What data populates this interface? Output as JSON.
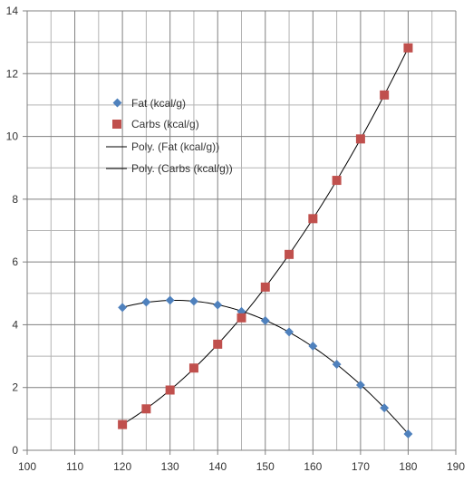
{
  "chart_data": {
    "type": "scatter",
    "title": "",
    "xlabel": "",
    "ylabel": "",
    "xlim": [
      100,
      190
    ],
    "ylim": [
      0,
      14
    ],
    "x_ticks": [
      100,
      110,
      120,
      130,
      140,
      150,
      160,
      170,
      180,
      190
    ],
    "y_ticks": [
      0,
      2,
      4,
      6,
      8,
      10,
      12,
      14
    ],
    "x_minor_step": 5,
    "y_minor_step": 1,
    "grid": true,
    "legend_position": "upper-left inside",
    "series": [
      {
        "name": "Fat (kcal/g)",
        "marker": "diamond",
        "color": "#4f81bd",
        "x": [
          120,
          125,
          130,
          135,
          140,
          145,
          150,
          155,
          160,
          165,
          170,
          175,
          180
        ],
        "y": [
          4.55,
          4.72,
          4.78,
          4.75,
          4.63,
          4.42,
          4.13,
          3.77,
          3.32,
          2.74,
          2.08,
          1.35,
          0.52
        ]
      },
      {
        "name": "Carbs (kcal/g)",
        "marker": "square",
        "color": "#c0504d",
        "x": [
          120,
          125,
          130,
          135,
          140,
          145,
          150,
          155,
          160,
          165,
          170,
          175,
          180
        ],
        "y": [
          0.82,
          1.32,
          1.92,
          2.62,
          3.38,
          4.22,
          5.2,
          6.24,
          7.38,
          8.6,
          9.92,
          11.32,
          12.82
        ]
      }
    ],
    "trendlines": [
      {
        "name": "Poly. (Fat (kcal/g))",
        "of_series": 0,
        "color": "#000000"
      },
      {
        "name": "Poly. (Carbs (kcal/g))",
        "of_series": 1,
        "color": "#000000"
      }
    ]
  }
}
